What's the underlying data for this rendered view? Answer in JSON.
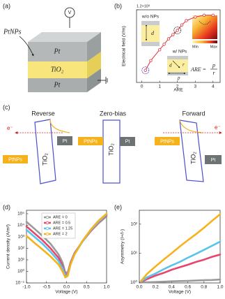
{
  "panel_labels": [
    "(a)",
    "(b)",
    "(c)",
    "(d)",
    "(e)"
  ],
  "diagram_a": {
    "voltmeter": "V",
    "ptnps": "PtNPs",
    "top_layer": "Pt",
    "middle_layer": "TiO₂",
    "bottom_layer": "Pt"
  },
  "diagram_c": {
    "reverse": {
      "title": "Reverse",
      "electron": "e⁻",
      "ptnps": "PtNPs",
      "oxide": "TiO₂",
      "electrode": "Pt"
    },
    "zero_bias": {
      "title": "Zero-bias",
      "ptnps": "PtNPs",
      "oxide": "TiO₂",
      "electrode": "Pt"
    },
    "forward": {
      "title": "Forward",
      "electron": "e⁻",
      "ptnps": "PtNPs",
      "oxide": "TiO₂",
      "electrode": "Pt"
    }
  },
  "chart_data": [
    {
      "type": "line",
      "xlabel": "ARE",
      "ylabel": "Electrical field (V/m)",
      "x": [
        0.2,
        0.5,
        1,
        1.25,
        1.5,
        1.75,
        2,
        2.25,
        2.5,
        3,
        3.5,
        4
      ],
      "series": [
        {
          "color": "#e0303a",
          "values": [
            200000000,
            360000000,
            540000000,
            630000000,
            720000000,
            790000000,
            860000000,
            950000000,
            1020000000,
            1080000000,
            1110000000,
            1110000000
          ]
        }
      ],
      "markers": true,
      "xlim": [
        -0.3,
        4.4
      ],
      "xticks": [
        0,
        1,
        2,
        3,
        4
      ],
      "ylim": [
        0,
        1200000000
      ],
      "yticks": [
        {
          "value": 1200000000,
          "label": "1.2×10⁹"
        }
      ],
      "annotations": {
        "without": "w/o NPs",
        "with": "w/ NPs",
        "d_without": "d",
        "d_with": "d",
        "p": "p",
        "r": "r",
        "are": "ARE =",
        "are_p": "p",
        "are_r": "r",
        "min": "Min",
        "max": "Max"
      }
    },
    {
      "type": "line",
      "xlabel": "Voltage (V)",
      "ylabel": "Current density (A/m²)",
      "ylog": true,
      "legend": "upper left",
      "x": [
        -1,
        -0.8,
        -0.6,
        -0.4,
        -0.2,
        -0.1,
        -0.03,
        0.03,
        0.1,
        0.2,
        0.4,
        0.6,
        0.8,
        1
      ],
      "series": [
        {
          "name": "ARE = 0",
          "color": "#9a9a9a",
          "values": [
            20000,
            5000,
            1200,
            250,
            30,
            6,
            0.8,
            0.8,
            6,
            40,
            400,
            3000,
            15000,
            60000
          ]
        },
        {
          "name": "ARE = 0.5",
          "color": "#e8456a",
          "values": [
            8000,
            2000,
            500,
            100,
            15,
            3,
            0.5,
            0.6,
            5,
            35,
            400,
            3000,
            18000,
            80000
          ]
        },
        {
          "name": "ARE = 1.25",
          "color": "#5bc2ea",
          "values": [
            4000,
            1000,
            250,
            50,
            8,
            2,
            0.4,
            0.5,
            4,
            30,
            400,
            3500,
            20000,
            90000
          ]
        },
        {
          "name": "ARE = 2",
          "color": "#f6b21a",
          "values": [
            1200,
            300,
            80,
            20,
            4,
            1,
            0.3,
            0.4,
            4,
            30,
            450,
            4000,
            25000,
            100000
          ]
        }
      ],
      "xlim": [
        -1,
        1
      ],
      "xticks": [
        {
          "value": -1,
          "label": "-1.0"
        },
        {
          "value": -0.5,
          "label": "-0.5"
        },
        {
          "value": 0,
          "label": "0.0"
        },
        {
          "value": 0.5,
          "label": "0.5"
        },
        {
          "value": 1,
          "label": "1.0"
        }
      ],
      "ylim": [
        0.1,
        200000
      ],
      "yticks": [
        {
          "value": 0.1,
          "label": "10⁻¹"
        },
        {
          "value": 1,
          "label": "10⁰"
        },
        {
          "value": 10,
          "label": "10¹"
        },
        {
          "value": 100,
          "label": "10²"
        },
        {
          "value": 1000,
          "label": "10³"
        },
        {
          "value": 10000,
          "label": "10⁴"
        },
        {
          "value": 100000,
          "label": "10⁵"
        }
      ]
    },
    {
      "type": "line",
      "xlabel": "Voltage (V)",
      "ylabel": "Asymmetry (I+/I-)",
      "ylog": true,
      "x": [
        0.02,
        0.1,
        0.2,
        0.3,
        0.4,
        0.5,
        0.6,
        0.7,
        0.8,
        0.9,
        1
      ],
      "series": [
        {
          "color": "#9a9a9a",
          "values": [
            1,
            1,
            1.02,
            1.05,
            1.08,
            1.1,
            1.12,
            1.15,
            1.18,
            1.2,
            1.25
          ]
        },
        {
          "color": "#e8456a",
          "values": [
            1.02,
            1.3,
            1.7,
            2.1,
            2.7,
            3.3,
            4,
            5,
            6,
            7.5,
            9
          ]
        },
        {
          "color": "#5bc2ea",
          "values": [
            1.05,
            1.5,
            2,
            2.8,
            3.8,
            5,
            7,
            9.5,
            13,
            18,
            25
          ]
        },
        {
          "color": "#f6b21a",
          "values": [
            1.1,
            2,
            3.5,
            6,
            10,
            17,
            28,
            45,
            75,
            130,
            220
          ]
        }
      ],
      "xlim": [
        0,
        1
      ],
      "xticks": [
        {
          "value": 0,
          "label": "0.0"
        },
        {
          "value": 0.2,
          "label": "0.2"
        },
        {
          "value": 0.4,
          "label": "0.4"
        },
        {
          "value": 0.6,
          "label": "0.6"
        },
        {
          "value": 0.8,
          "label": "0.8"
        },
        {
          "value": 1,
          "label": "1.0"
        }
      ],
      "ylim": [
        0.95,
        300
      ],
      "yticks": [
        {
          "value": 1,
          "label": "10⁰"
        },
        {
          "value": 10,
          "label": "10¹"
        },
        {
          "value": 100,
          "label": "10²"
        }
      ]
    }
  ]
}
